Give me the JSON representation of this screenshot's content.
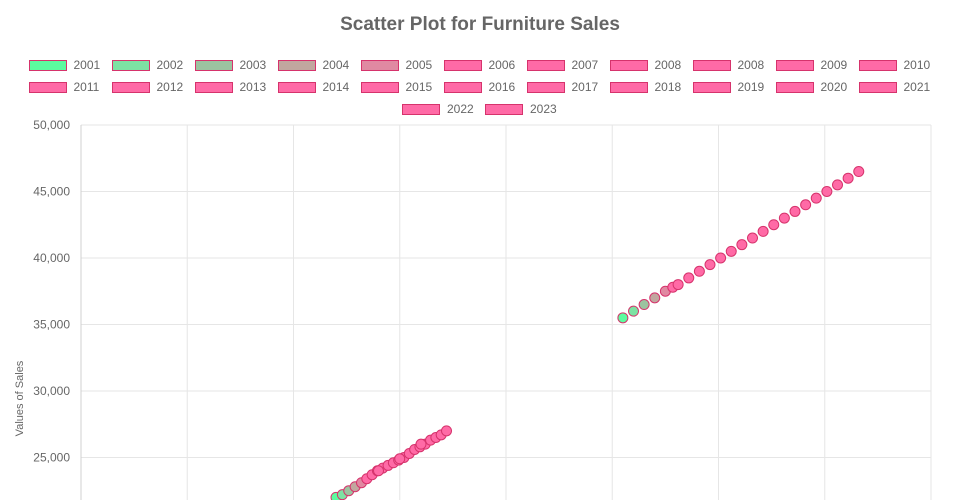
{
  "chart_data": {
    "type": "scatter",
    "title": "Scatter Plot for Furniture Sales",
    "xlabel": "",
    "ylabel": "Values of Sales",
    "ylim": [
      21800,
      50000
    ],
    "xlim": [
      0,
      4000
    ],
    "y_ticks": [
      25000,
      30000,
      35000,
      40000,
      45000,
      50000
    ],
    "y_tick_labels": [
      "25,000",
      "30,000",
      "35,000",
      "40,000",
      "45,000",
      "50,000"
    ],
    "x_gridlines": [
      500,
      1000,
      1500,
      2000,
      2500,
      3000,
      3500,
      4000
    ],
    "grid": true,
    "legend_position": "top",
    "series": [
      {
        "name": "2001",
        "color": "#5cfc9f",
        "points": [
          [
            2550,
            35500
          ],
          [
            1200,
            22000
          ]
        ]
      },
      {
        "name": "2002",
        "color": "#7de2a3",
        "points": [
          [
            2600,
            36000
          ],
          [
            1230,
            22200
          ]
        ]
      },
      {
        "name": "2003",
        "color": "#9cc3a0",
        "points": [
          [
            2650,
            36500
          ],
          [
            1260,
            22500
          ]
        ]
      },
      {
        "name": "2004",
        "color": "#c1a79f",
        "points": [
          [
            2700,
            37000
          ],
          [
            1290,
            22800
          ]
        ]
      },
      {
        "name": "2005",
        "color": "#e089a2",
        "points": [
          [
            2750,
            37500
          ],
          [
            1320,
            23100
          ]
        ]
      },
      {
        "name": "2006",
        "color": "#ff6aa6",
        "points": [
          [
            2785,
            37800
          ],
          [
            1345,
            23400
          ]
        ]
      },
      {
        "name": "2007",
        "color": "#ff6aa6",
        "points": [
          [
            2810,
            38000
          ],
          [
            1370,
            23700
          ]
        ]
      },
      {
        "name": "2008",
        "color": "#ff6aa6",
        "points": [
          [
            2860,
            38500
          ],
          [
            1395,
            24000
          ]
        ]
      },
      {
        "name": "2008",
        "color": "#ff6aa6",
        "points": [
          [
            2910,
            39000
          ],
          [
            1420,
            24200
          ]
        ]
      },
      {
        "name": "2009",
        "color": "#ff6aa6",
        "points": [
          [
            2960,
            39500
          ],
          [
            1445,
            24400
          ]
        ]
      },
      {
        "name": "2010",
        "color": "#ff6aa6",
        "points": [
          [
            3010,
            40000
          ],
          [
            1470,
            24600
          ]
        ]
      },
      {
        "name": "2011",
        "color": "#ff6aa6",
        "points": [
          [
            3060,
            40500
          ],
          [
            1495,
            24800
          ]
        ]
      },
      {
        "name": "2012",
        "color": "#ff6aa6",
        "points": [
          [
            3110,
            41000
          ],
          [
            1520,
            25000
          ]
        ]
      },
      {
        "name": "2013",
        "color": "#ff6aa6",
        "points": [
          [
            3160,
            41500
          ],
          [
            1545,
            25300
          ]
        ]
      },
      {
        "name": "2014",
        "color": "#ff6aa6",
        "points": [
          [
            3210,
            42000
          ],
          [
            1570,
            25600
          ]
        ]
      },
      {
        "name": "2015",
        "color": "#ff6aa6",
        "points": [
          [
            3260,
            42500
          ],
          [
            1595,
            25800
          ]
        ]
      },
      {
        "name": "2016",
        "color": "#ff6aa6",
        "points": [
          [
            3310,
            43000
          ],
          [
            1620,
            26000
          ]
        ]
      },
      {
        "name": "2017",
        "color": "#ff6aa6",
        "points": [
          [
            3360,
            43500
          ],
          [
            1645,
            26300
          ]
        ]
      },
      {
        "name": "2018",
        "color": "#ff6aa6",
        "points": [
          [
            3410,
            44000
          ],
          [
            1670,
            26500
          ]
        ]
      },
      {
        "name": "2019",
        "color": "#ff6aa6",
        "points": [
          [
            3460,
            44500
          ],
          [
            1695,
            26700
          ]
        ]
      },
      {
        "name": "2020",
        "color": "#ff6aa6",
        "points": [
          [
            3510,
            45000
          ],
          [
            1720,
            27000
          ]
        ]
      },
      {
        "name": "2021",
        "color": "#ff6aa6",
        "points": [
          [
            3560,
            45500
          ],
          [
            1600,
            26000
          ]
        ]
      },
      {
        "name": "2022",
        "color": "#ff6aa6",
        "points": [
          [
            3610,
            46000
          ],
          [
            1500,
            24900
          ]
        ]
      },
      {
        "name": "2023",
        "color": "#ff6aa6",
        "points": [
          [
            3660,
            46500
          ],
          [
            1400,
            24000
          ]
        ]
      }
    ],
    "marker_border_color": "#d6336c"
  }
}
